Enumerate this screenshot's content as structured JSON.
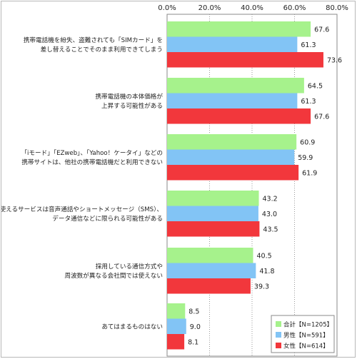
{
  "chart_data": {
    "type": "bar",
    "orientation": "horizontal",
    "xlim": [
      0,
      80
    ],
    "ticks": [
      "0.0%",
      "20.0%",
      "40.0%",
      "60.0%",
      "80.0%"
    ],
    "tick_values": [
      0,
      20,
      40,
      60,
      80
    ],
    "grid": "vertical dotted",
    "legend_position": "bottom-right",
    "categories": [
      [
        "携帯電話機を紛失、盗難されても「SIMカード」を",
        "差し替えることでそのまま利用できてしまう"
      ],
      [
        "携帯電話機の本体価格が",
        "上昇する可能性がある"
      ],
      [
        "「iモード」「EZweb」、「Yahoo！ケータイ」などの",
        "携帯サイトは、他社の携帯電話機だと利用できない"
      ],
      [
        "使えるサービスは音声通話やショートメッセージ（SMS）、",
        "データ通信などに限られる可能性がある"
      ],
      [
        "採用している通信方式や",
        "周波数が異なる会社間では使えない"
      ],
      [
        "あてはまるものはない"
      ]
    ],
    "series": [
      {
        "name": "合計【N=1205】",
        "color": "#a6f28c",
        "values": [
          67.6,
          64.5,
          60.9,
          43.2,
          40.5,
          8.5
        ]
      },
      {
        "name": "男性【N=591】",
        "color": "#82c4f5",
        "values": [
          61.3,
          61.3,
          59.9,
          43.0,
          41.8,
          9.0
        ]
      },
      {
        "name": "女性【N=614】",
        "color": "#f2373c",
        "values": [
          73.6,
          67.6,
          61.9,
          43.5,
          39.3,
          8.1
        ]
      }
    ]
  }
}
